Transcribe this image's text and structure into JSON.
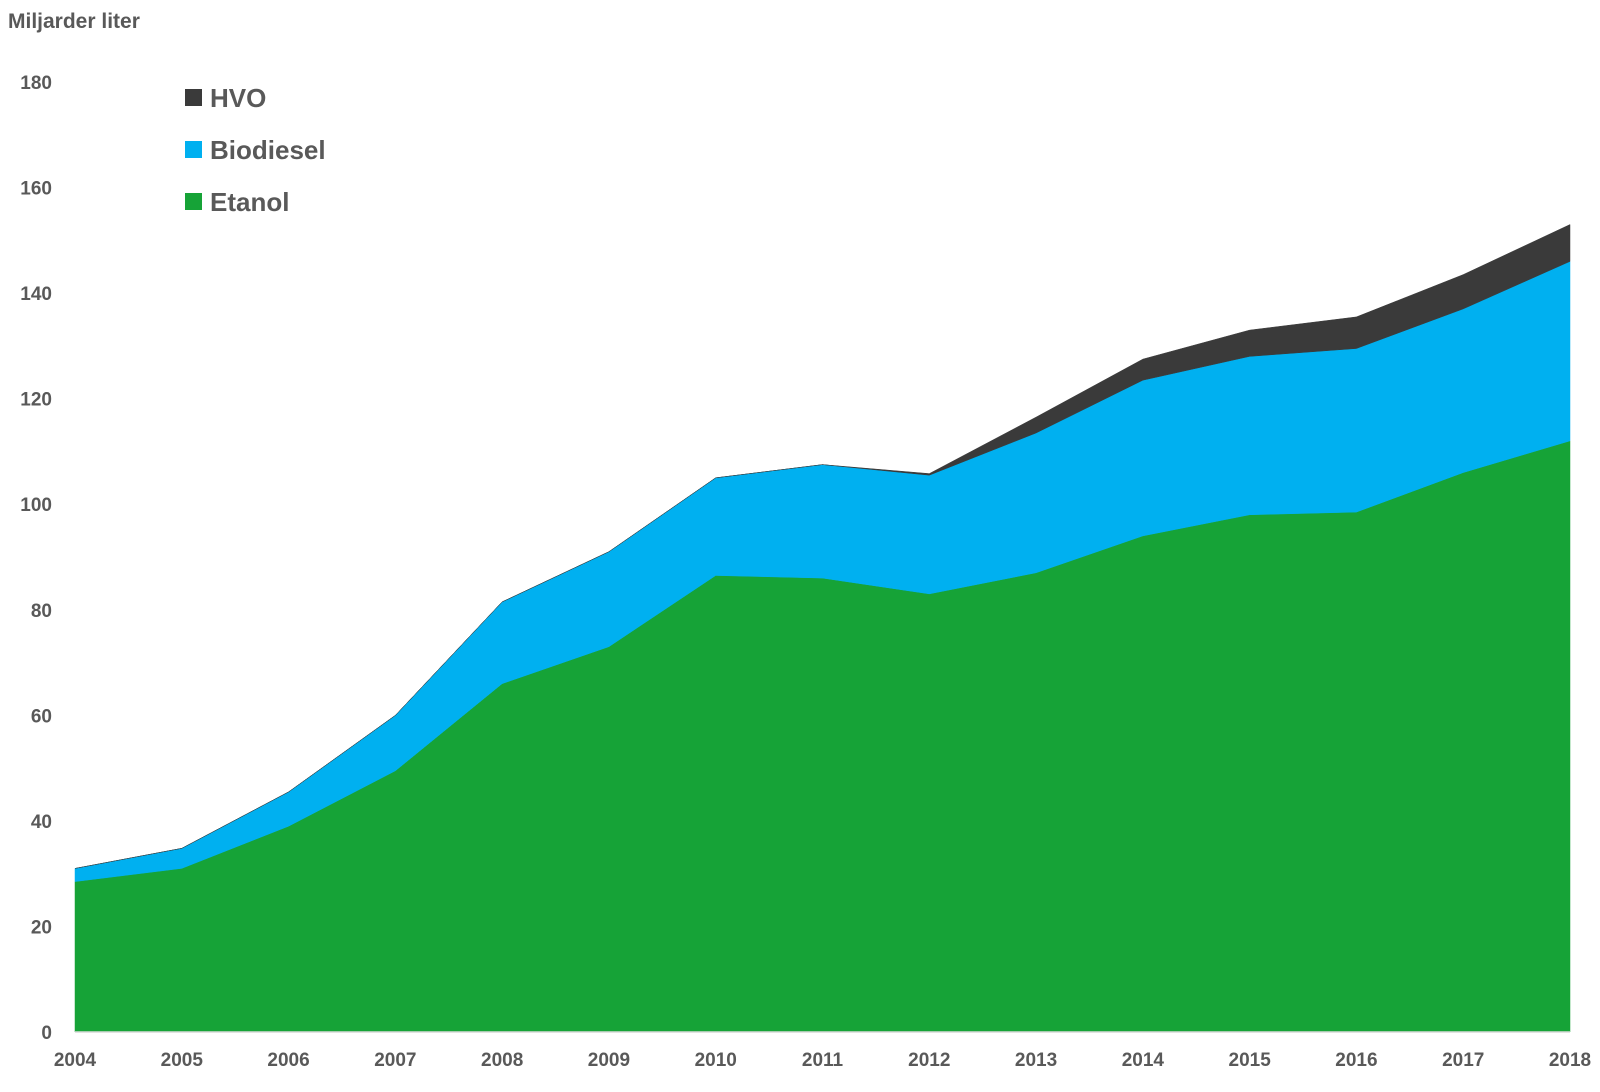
{
  "chart_data": {
    "type": "area",
    "stacked": true,
    "ylabel": "Miljarder liter",
    "xlabel": "",
    "title": "",
    "x": [
      "2004",
      "2005",
      "2006",
      "2007",
      "2008",
      "2009",
      "2010",
      "2011",
      "2012",
      "2013",
      "2014",
      "2015",
      "2016",
      "2017",
      "2018"
    ],
    "ylim": [
      0,
      180
    ],
    "yticks": [
      0,
      20,
      40,
      60,
      80,
      100,
      120,
      140,
      160,
      180
    ],
    "grid": false,
    "legend_position": "top-left",
    "series": [
      {
        "name": "Etanol",
        "color": "#16a337",
        "values": [
          28.5,
          31,
          39,
          49.5,
          66,
          73,
          86.5,
          86,
          83,
          87,
          94,
          98,
          98.5,
          106,
          112
        ]
      },
      {
        "name": "Biodiesel",
        "color": "#00b0f0",
        "values": [
          2.5,
          3.8,
          6.5,
          10.5,
          15.5,
          18,
          18.5,
          21.5,
          22.5,
          26.5,
          29.5,
          30,
          31,
          31,
          34
        ]
      },
      {
        "name": "HVO",
        "color": "#3a3a3a",
        "values": [
          0,
          0,
          0,
          0,
          0,
          0,
          0,
          0,
          0.3,
          3,
          4,
          5,
          6,
          6.5,
          7
        ]
      }
    ]
  }
}
